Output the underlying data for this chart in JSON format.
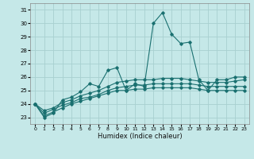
{
  "xlabel": "Humidex (Indice chaleur)",
  "background_color": "#c5e8e8",
  "grid_color": "#a8d0d0",
  "line_color": "#1a7070",
  "xlim": [
    -0.5,
    23.5
  ],
  "ylim": [
    22.5,
    31.5
  ],
  "yticks": [
    23,
    24,
    25,
    26,
    27,
    28,
    29,
    30,
    31
  ],
  "xticks": [
    0,
    1,
    2,
    3,
    4,
    5,
    6,
    7,
    8,
    9,
    10,
    11,
    12,
    13,
    14,
    15,
    16,
    17,
    18,
    19,
    20,
    21,
    22,
    23
  ],
  "series": [
    [
      24.0,
      23.0,
      23.3,
      24.3,
      24.5,
      24.9,
      25.5,
      25.3,
      26.5,
      26.7,
      25.0,
      25.5,
      25.3,
      30.0,
      30.8,
      29.2,
      28.5,
      28.6,
      25.8,
      25.0,
      25.8,
      25.8,
      26.0,
      26.0
    ],
    [
      24.0,
      23.5,
      23.7,
      24.1,
      24.3,
      24.6,
      24.8,
      25.0,
      25.3,
      25.6,
      25.7,
      25.8,
      25.8,
      25.8,
      25.9,
      25.9,
      25.9,
      25.8,
      25.7,
      25.6,
      25.6,
      25.6,
      25.7,
      25.8
    ],
    [
      24.0,
      23.3,
      23.6,
      23.9,
      24.1,
      24.4,
      24.5,
      24.7,
      25.0,
      25.2,
      25.3,
      25.4,
      25.4,
      25.5,
      25.5,
      25.5,
      25.5,
      25.5,
      25.4,
      25.3,
      25.3,
      25.3,
      25.3,
      25.3
    ],
    [
      24.0,
      23.1,
      23.4,
      23.7,
      24.0,
      24.2,
      24.4,
      24.6,
      24.8,
      25.0,
      25.0,
      25.1,
      25.1,
      25.2,
      25.2,
      25.2,
      25.2,
      25.2,
      25.1,
      25.0,
      25.0,
      25.0,
      25.0,
      25.0
    ]
  ]
}
